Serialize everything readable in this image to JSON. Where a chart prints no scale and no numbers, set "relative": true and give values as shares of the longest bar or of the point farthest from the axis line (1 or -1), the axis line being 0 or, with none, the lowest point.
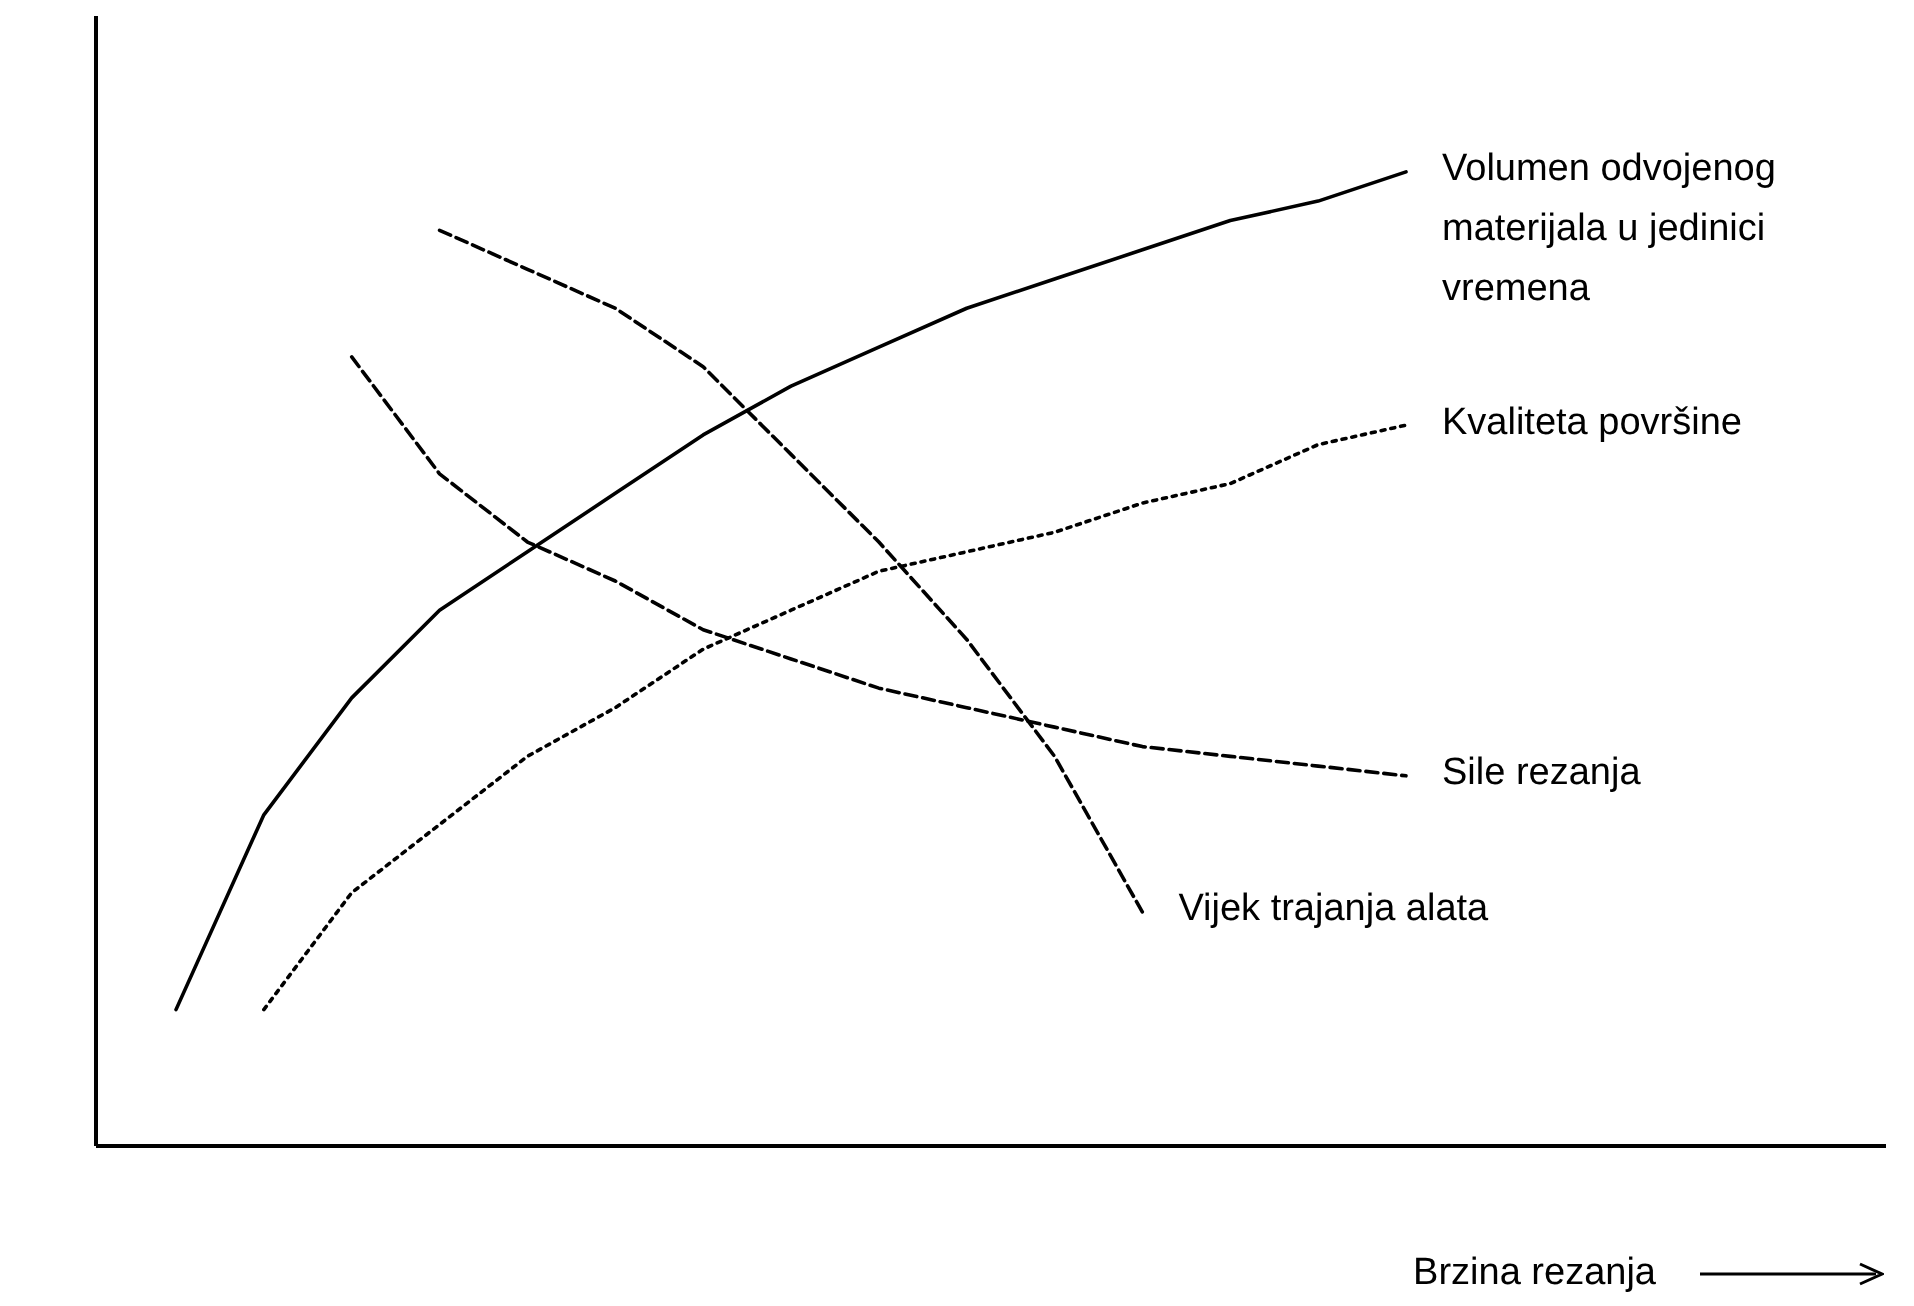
{
  "chart_data": {
    "type": "line",
    "relative": true,
    "xlabel": "Brzina rezanja",
    "categories": [
      null,
      null,
      null,
      null,
      null,
      null,
      null,
      null,
      null,
      null,
      null,
      null,
      null,
      null,
      null
    ],
    "marker": "none",
    "series": [
      {
        "name": "Volumen odvojenog materijala u jedinici vremena",
        "color": "#000000",
        "line_style": "solid",
        "values": [
          0.14,
          0.34,
          0.46,
          0.55,
          0.61,
          0.67,
          0.73,
          0.78,
          0.82,
          0.86,
          0.89,
          0.92,
          0.95,
          0.97,
          1
        ]
      },
      {
        "name": "Kvaliteta površine",
        "color": "#000000",
        "line_style": "dotted",
        "values": [
          null,
          0.14,
          0.26,
          0.33,
          0.4,
          0.45,
          0.51,
          0.55,
          0.59,
          0.61,
          0.63,
          0.66,
          0.68,
          0.72,
          0.74
        ]
      },
      {
        "name": "Sile rezanja",
        "color": "#000000",
        "line_style": "dashed",
        "values": [
          null,
          null,
          0.81,
          0.69,
          0.62,
          0.58,
          0.53,
          0.5,
          0.47,
          0.45,
          0.43,
          0.41,
          0.4,
          0.39,
          0.38
        ]
      },
      {
        "name": "Vijek trajanja alata",
        "color": "#000000",
        "line_style": "dashed",
        "values": [
          null,
          null,
          null,
          0.94,
          0.9,
          0.86,
          0.8,
          0.71,
          0.62,
          0.52,
          0.4,
          0.24,
          null,
          null,
          null
        ]
      }
    ]
  }
}
